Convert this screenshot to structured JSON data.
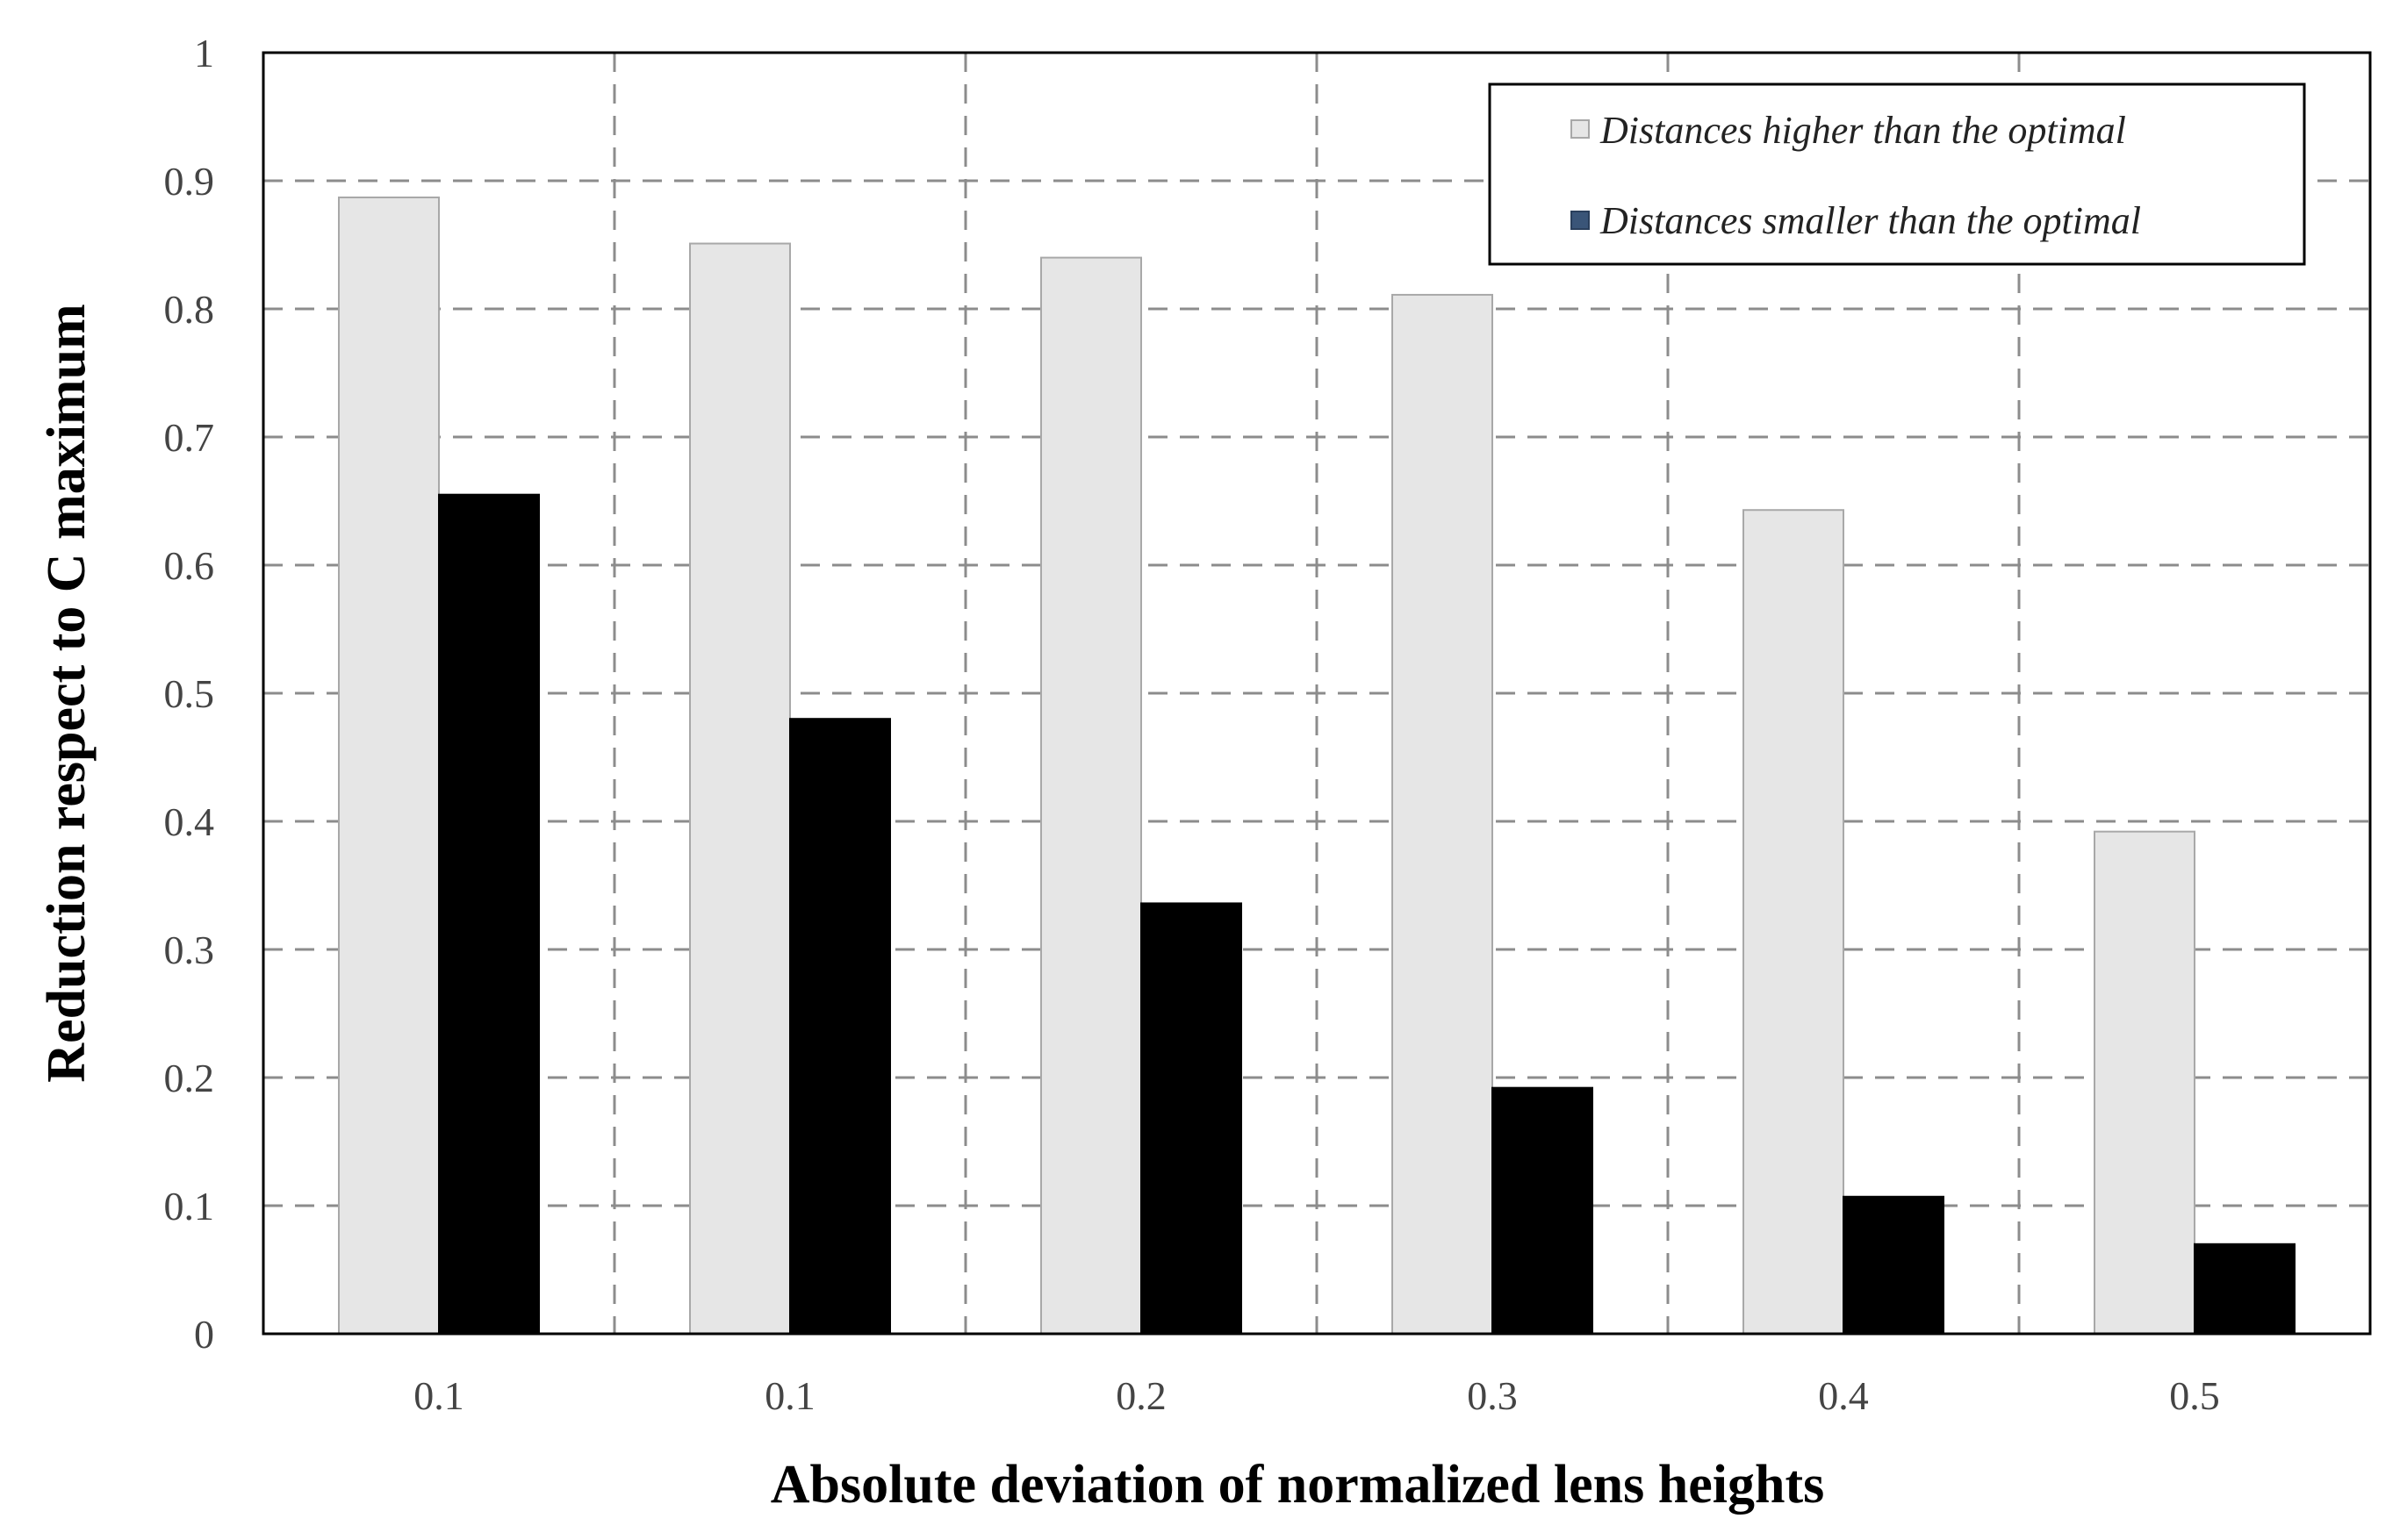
{
  "chart_data": {
    "type": "bar",
    "title": "",
    "xlabel": "Absolute deviation of normalized lens heights",
    "ylabel": "Reduction respect to C maximum",
    "categories": [
      "0.1",
      "0.1",
      "0.2",
      "0.3",
      "0.4",
      "0.5"
    ],
    "ylim": [
      0,
      1
    ],
    "yticks": [
      "0",
      "0.1",
      "0.2",
      "0.3",
      "0.4",
      "0.5",
      "0.6",
      "0.7",
      "0.8",
      "0.9",
      "1"
    ],
    "grid": true,
    "legend_position": "top-right",
    "series": [
      {
        "name": "Distances higher than the optimal",
        "color": "#e6e6e6",
        "values": [
          0.887,
          0.851,
          0.84,
          0.811,
          0.643,
          0.392
        ]
      },
      {
        "name": "Distances smaller than the optimal",
        "color": "#000000",
        "values": [
          0.655,
          0.48,
          0.336,
          0.192,
          0.107,
          0.07
        ]
      }
    ],
    "legend_marker_colors": [
      "#e6e6e6",
      "#3a5578"
    ]
  }
}
